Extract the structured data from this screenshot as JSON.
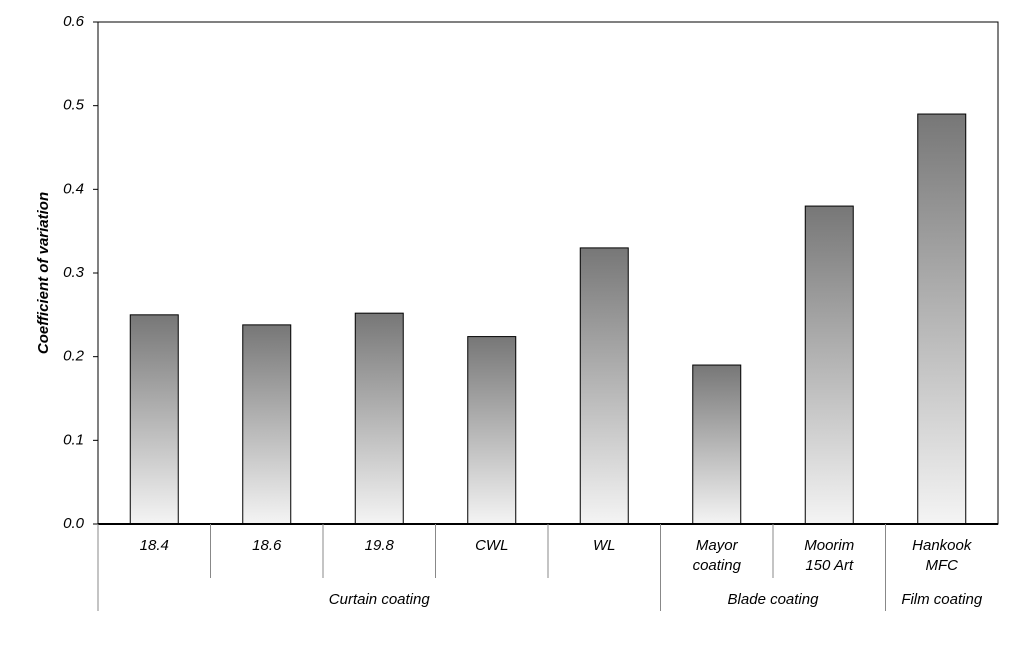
{
  "chart_data": {
    "type": "bar",
    "y_label": "Coefficient of variation",
    "categories": [
      "18.4",
      "18.6",
      "19.8",
      "CWL",
      "WL",
      "Mayor coating",
      "Moorim 150 Art",
      "Hankook MFC"
    ],
    "values": [
      0.25,
      0.238,
      0.252,
      0.224,
      0.33,
      0.19,
      0.38,
      0.49
    ],
    "groups": [
      {
        "label": "Curtain coating",
        "count": 5
      },
      {
        "label": "Blade coating",
        "count": 2
      },
      {
        "label": "Film coating",
        "count": 1
      }
    ],
    "color": [
      "#777777",
      "#f4f4f4"
    ],
    "ylim": [
      0,
      0.6
    ],
    "yticks": [
      {
        "value": 0,
        "label": "0.0"
      },
      0.1,
      0.2,
      0.3,
      0.4,
      0.5,
      0.6
    ]
  }
}
